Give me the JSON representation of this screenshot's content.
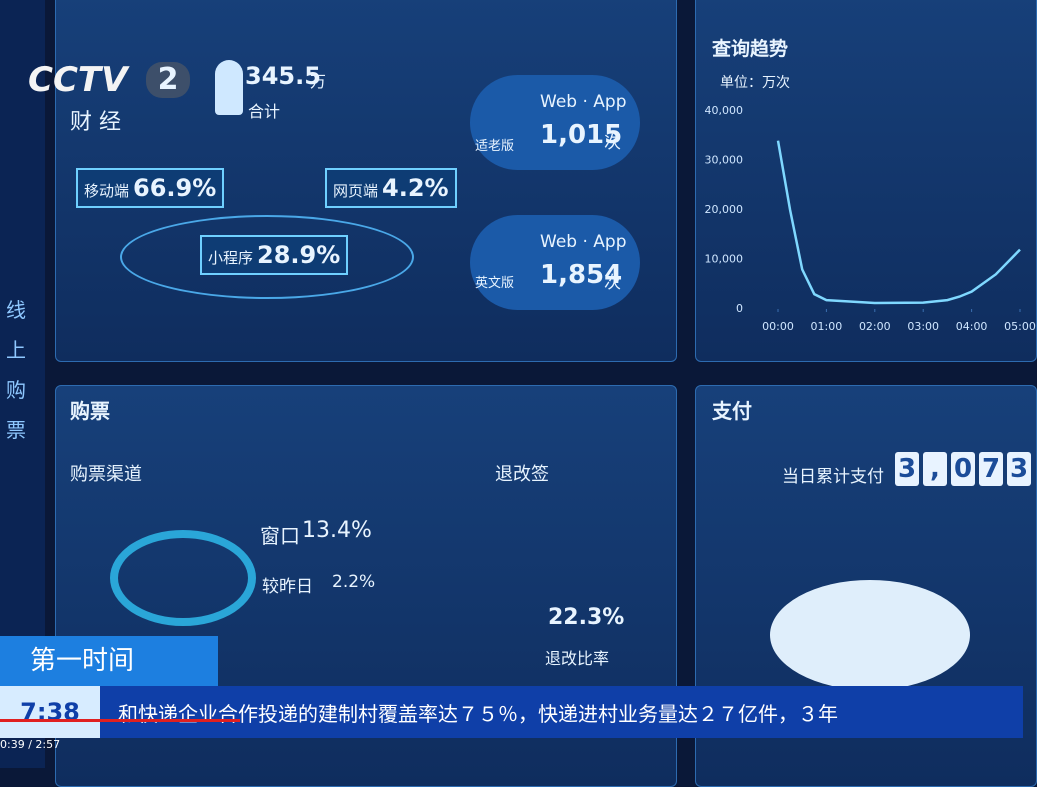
{
  "logo": {
    "brand": "CCTV",
    "channel": "2",
    "subtitle": "财 经"
  },
  "side_title": "线上购票",
  "overview": {
    "total": {
      "value": "345.5",
      "unit": "万",
      "label": "合计"
    },
    "channels": [
      {
        "name": "移动端",
        "share": "66.9%"
      },
      {
        "name": "网页端",
        "share": "4.2%"
      },
      {
        "name": "小程序",
        "share": "28.9%"
      }
    ],
    "versions": [
      {
        "name": "适老版",
        "platforms": "Web · App",
        "count": "1,015",
        "unit": "次"
      },
      {
        "name": "英文版",
        "platforms": "Web · App",
        "count": "1,854",
        "unit": "次"
      }
    ]
  },
  "chart_data": {
    "type": "line",
    "title": "查询趋势",
    "unit_label": "单位：万次",
    "x": [
      0,
      0.25,
      0.5,
      0.75,
      1,
      2,
      3,
      3.5,
      3.75,
      4,
      4.5,
      5
    ],
    "series": [
      {
        "color": "#7fd8ff",
        "values": [
          34000,
          20000,
          8000,
          3000,
          1800,
          1200,
          1300,
          1800,
          2500,
          3500,
          7000,
          12000
        ]
      }
    ],
    "xlim": [
      0,
      5
    ],
    "xticks": [
      {
        "value": 0,
        "label": "00:00"
      },
      {
        "value": 1,
        "label": "01:00"
      },
      {
        "value": 2,
        "label": "02:00"
      },
      {
        "value": 3,
        "label": "03:00"
      },
      {
        "value": 4,
        "label": "04:00"
      },
      {
        "value": 5,
        "label": "05:00"
      }
    ],
    "ylim": [
      0,
      40000
    ],
    "yticks": [
      0,
      {
        "value": 10000,
        "label": "10,000"
      },
      {
        "value": 20000,
        "label": "20,000"
      },
      {
        "value": 30000,
        "label": "30,000"
      },
      {
        "value": 40000,
        "label": "40,000"
      }
    ]
  },
  "tickets": {
    "title": "购票",
    "channel_title": "购票渠道",
    "window": {
      "name": "窗口",
      "share": "13.4%"
    },
    "compare": {
      "label": "较昨日",
      "change": "2.2%"
    },
    "refund_title": "退改签",
    "refund_rate": "22.3%",
    "refund_label": "退改比率"
  },
  "payment": {
    "title": "支付",
    "label": "当日累计支付",
    "digits": [
      "3",
      ",",
      "0",
      "7",
      "3"
    ]
  },
  "ticker": {
    "program": "第一时间",
    "time": "7:38",
    "text": "和快递企业合作投递的建制村覆盖率达７５％，快递进村业务量达２７亿件，３年"
  },
  "player": {
    "time": "0:39 / 2:57"
  }
}
